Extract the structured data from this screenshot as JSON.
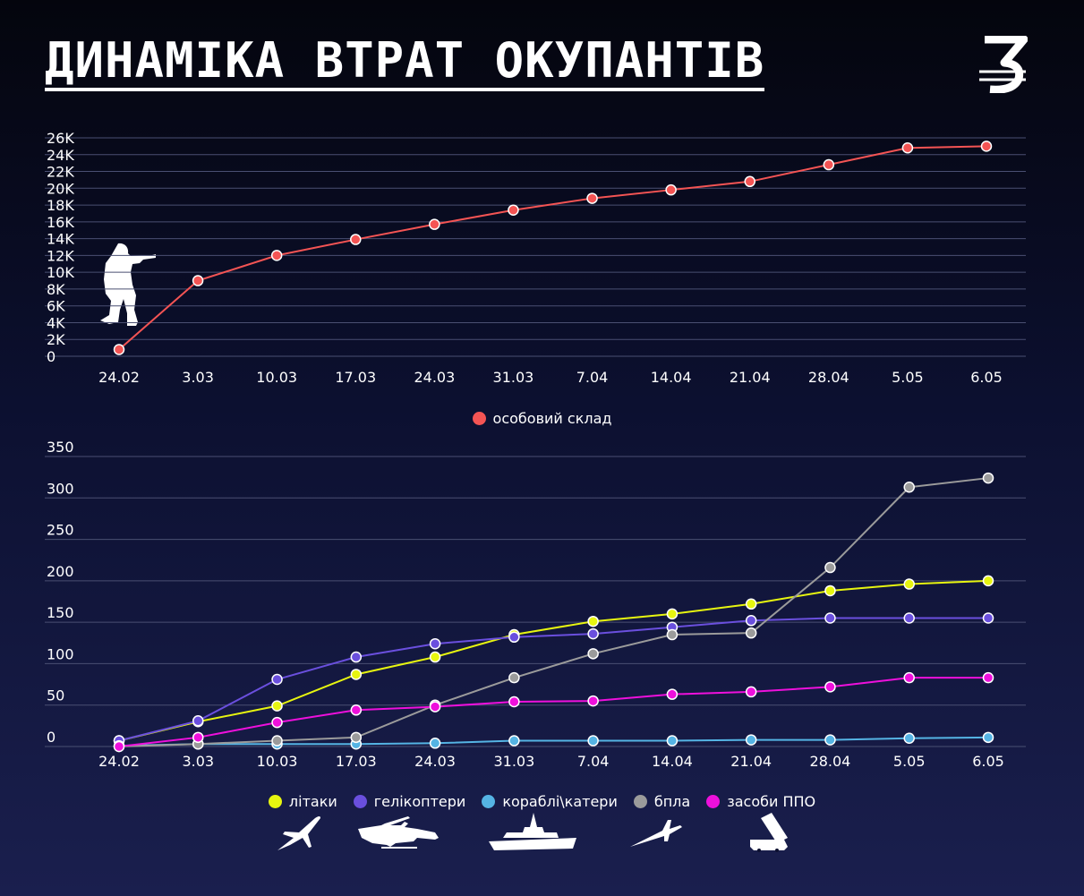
{
  "title": "ДИНАМІКА ВТРАТ ОКУПАНТІВ",
  "logo_text": "З",
  "icons": {
    "soldier": "soldier-silhouette-icon",
    "plane": "fighter-jet-icon",
    "helicopter": "helicopter-icon",
    "ship": "warship-icon",
    "drone": "uav-drone-icon",
    "air_defense": "missile-launcher-icon"
  },
  "chart_data": [
    {
      "type": "line",
      "categories": [
        "24.02",
        "3.03",
        "10.03",
        "17.03",
        "24.03",
        "31.03",
        "7.04",
        "14.04",
        "21.04",
        "28.04",
        "5.05",
        "6.05"
      ],
      "ylim": [
        0,
        26000
      ],
      "yticks": [
        0,
        2000,
        4000,
        6000,
        8000,
        10000,
        12000,
        14000,
        16000,
        18000,
        20000,
        22000,
        24000,
        26000
      ],
      "ytick_labels": [
        "0",
        "2K",
        "4K",
        "6K",
        "8K",
        "10K",
        "12K",
        "14K",
        "16K",
        "18K",
        "20K",
        "22K",
        "24K",
        "26K"
      ],
      "grid": true,
      "legend_position": "bottom-center",
      "series": [
        {
          "name": "особовий склад",
          "color": "#f45454",
          "values": [
            800,
            9000,
            12000,
            13900,
            15700,
            17400,
            18800,
            19800,
            20800,
            22800,
            24800,
            25000
          ]
        }
      ]
    },
    {
      "type": "line",
      "categories": [
        "24.02",
        "3.03",
        "10.03",
        "17.03",
        "24.03",
        "31.03",
        "7.04",
        "14.04",
        "21.04",
        "28.04",
        "5.05",
        "6.05"
      ],
      "ylim": [
        0,
        350
      ],
      "yticks": [
        0,
        50,
        100,
        150,
        200,
        250,
        300,
        350
      ],
      "ytick_labels": [
        "0",
        "50",
        "100",
        "150",
        "200",
        "250",
        "300",
        "350"
      ],
      "grid": true,
      "legend_position": "bottom-center",
      "series": [
        {
          "name": "літаки",
          "color": "#e7f510",
          "values": [
            7,
            30,
            49,
            87,
            108,
            135,
            151,
            160,
            172,
            188,
            196,
            200
          ]
        },
        {
          "name": "гелікоптери",
          "color": "#6a4fde",
          "values": [
            7,
            31,
            81,
            108,
            124,
            132,
            136,
            144,
            152,
            155,
            155,
            155
          ]
        },
        {
          "name": "кораблі\\катери",
          "color": "#55b4e4",
          "values": [
            1,
            3,
            3,
            3,
            4,
            7,
            7,
            7,
            8,
            8,
            10,
            11
          ]
        },
        {
          "name": "бпла",
          "color": "#9b9b9b",
          "values": [
            0,
            3,
            7,
            11,
            50,
            83,
            112,
            135,
            137,
            216,
            313,
            324
          ]
        },
        {
          "name": "засоби ППО",
          "color": "#ee10dc",
          "values": [
            0,
            11,
            29,
            44,
            48,
            54,
            55,
            63,
            66,
            72,
            83,
            83
          ]
        }
      ]
    }
  ]
}
